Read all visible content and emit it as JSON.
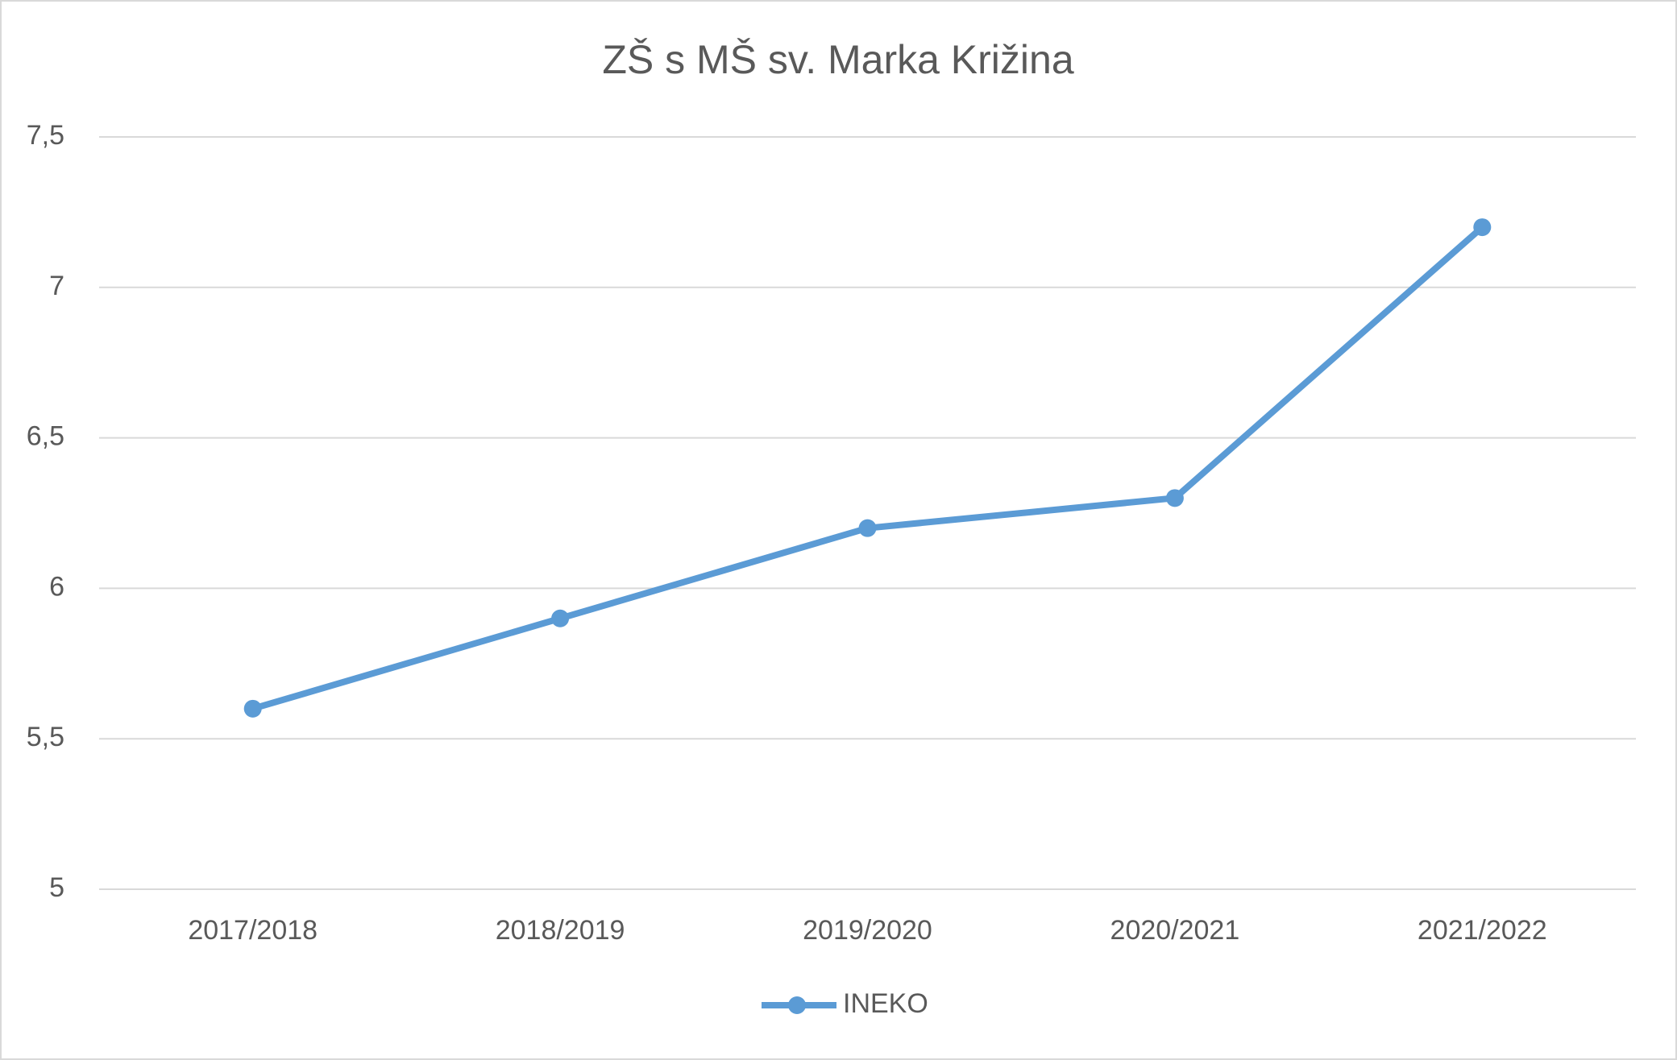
{
  "chart_data": {
    "type": "line",
    "title": "ZŠ s MŠ sv. Marka Križina",
    "categories": [
      "2017/2018",
      "2018/2019",
      "2019/2020",
      "2020/2021",
      "2021/2022"
    ],
    "series": [
      {
        "name": "INEKO",
        "color": "#5b9bd5",
        "values": [
          5.6,
          5.9,
          6.2,
          6.3,
          7.2
        ]
      }
    ],
    "ylim": [
      5,
      7.5
    ],
    "yticks": [
      5,
      {
        "value": 5.5,
        "label": "5,5"
      },
      6,
      {
        "value": 6.5,
        "label": "6,5"
      },
      7,
      {
        "value": 7.5,
        "label": "7,5"
      }
    ],
    "grid": true,
    "legend": "bottom"
  }
}
